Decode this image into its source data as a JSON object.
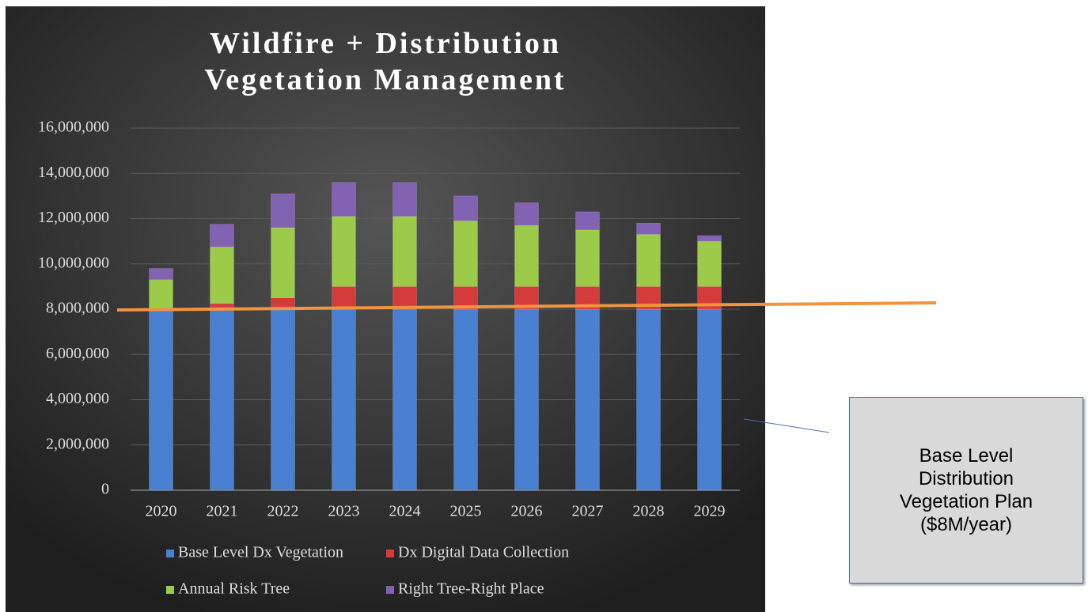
{
  "chart_data": {
    "type": "bar",
    "stacked": true,
    "title": "Wildfire + Distribution Vegetation Management",
    "categories": [
      "2020",
      "2021",
      "2022",
      "2023",
      "2024",
      "2025",
      "2026",
      "2027",
      "2028",
      "2029"
    ],
    "series": [
      {
        "name": "Base Level Dx Vegetation",
        "color": "#4a80d2",
        "values": [
          8000000,
          8000000,
          8000000,
          8000000,
          8000000,
          8000000,
          8000000,
          8000000,
          8000000,
          8000000
        ]
      },
      {
        "name": "Dx Digital Data Collection",
        "color": "#d63b3b",
        "values": [
          0,
          250000,
          500000,
          1000000,
          1000000,
          1000000,
          1000000,
          1000000,
          1000000,
          1000000
        ]
      },
      {
        "name": "Annual Risk Tree",
        "color": "#9ccb4a",
        "values": [
          1300000,
          2500000,
          3100000,
          3100000,
          3100000,
          2900000,
          2700000,
          2500000,
          2300000,
          2000000
        ]
      },
      {
        "name": "Right Tree-Right Place",
        "color": "#8262b3",
        "values": [
          500000,
          1000000,
          1500000,
          1500000,
          1500000,
          1100000,
          1000000,
          800000,
          500000,
          250000
        ]
      }
    ],
    "ylim": [
      0,
      16000000
    ],
    "yticks": [
      0,
      {
        "value": 2000000,
        "label": "2,000,000"
      },
      {
        "value": 4000000,
        "label": "4,000,000"
      },
      {
        "value": 6000000,
        "label": "6,000,000"
      },
      {
        "value": 8000000,
        "label": "8,000,000"
      },
      {
        "value": 10000000,
        "label": "10,000,000"
      },
      {
        "value": 12000000,
        "label": "12,000,000"
      },
      {
        "value": 14000000,
        "label": "14,000,000"
      },
      {
        "value": 16000000,
        "label": "16,000,000"
      }
    ],
    "grid": true,
    "legend": "bottom",
    "annotation": "Base Level Distribution Vegetation Plan ($8M/year)"
  }
}
